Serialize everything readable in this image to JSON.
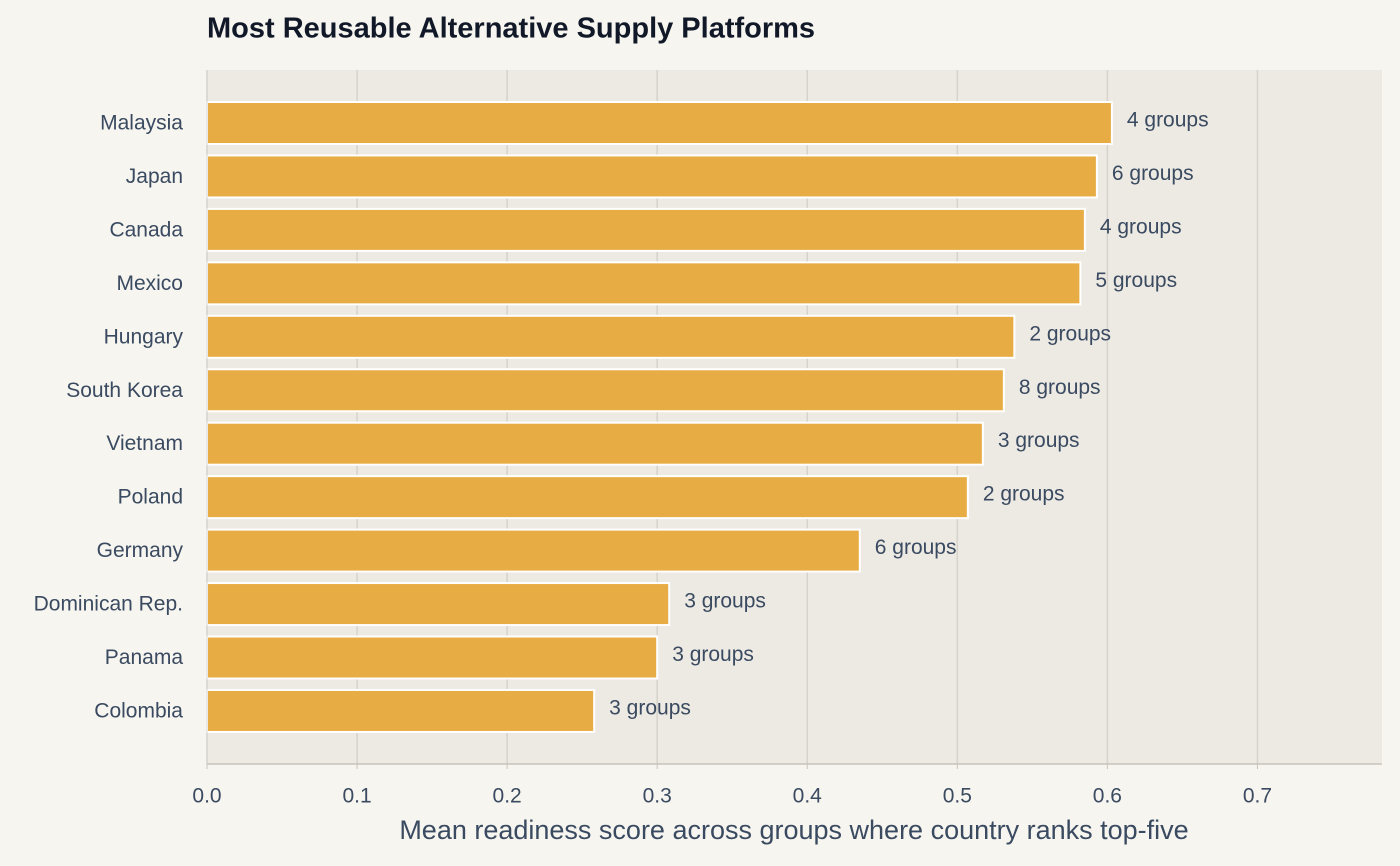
{
  "chart_data": {
    "type": "barh",
    "title": "Most Reusable Alternative Supply Platforms",
    "xlabel": "Mean readiness score across groups where country ranks top-five",
    "categories": [
      "Malaysia",
      "Japan",
      "Canada",
      "Mexico",
      "Hungary",
      "South Korea",
      "Vietnam",
      "Poland",
      "Germany",
      "Dominican Rep.",
      "Panama",
      "Colombia"
    ],
    "values": [
      0.603,
      0.593,
      0.585,
      0.582,
      0.538,
      0.531,
      0.517,
      0.507,
      0.435,
      0.308,
      0.3,
      0.258
    ],
    "annotations": [
      "4 groups",
      "6 groups",
      "4 groups",
      "5 groups",
      "2 groups",
      "8 groups",
      "3 groups",
      "2 groups",
      "6 groups",
      "3 groups",
      "3 groups",
      "3 groups"
    ],
    "color": "#e8ac45",
    "xlim": [
      0,
      0.783
    ],
    "xticks": [
      {
        "value": 0,
        "label": "0.0"
      },
      0.1,
      0.2,
      0.3,
      0.4,
      0.5,
      0.6,
      0.7
    ],
    "grid": true
  }
}
